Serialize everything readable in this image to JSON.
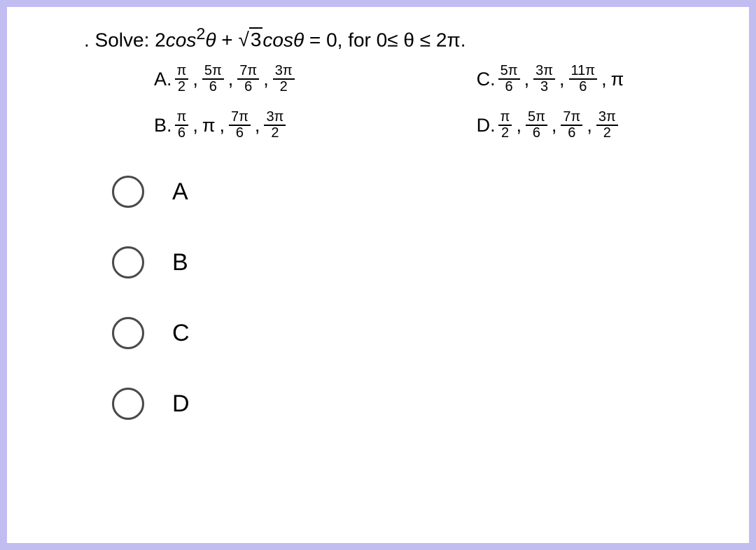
{
  "question": {
    "prefix": ". Solve: ",
    "coeff1": "2",
    "term1": "cos",
    "exp1": "2",
    "var1": "θ",
    "plus": " + ",
    "sqrt_inner": "3",
    "term2": "cosθ",
    "eq_zero": " = 0, ",
    "domain": "for 0≤ θ ≤ 2π."
  },
  "choices": {
    "A": {
      "label": "A.",
      "parts": [
        [
          "π",
          "2"
        ],
        [
          "5π",
          "6"
        ],
        [
          "7π",
          "6"
        ],
        [
          "3π",
          "2"
        ]
      ]
    },
    "B": {
      "label": "B.",
      "parts": [
        [
          "π",
          "6"
        ],
        "π",
        [
          "7π",
          "6"
        ],
        [
          "3π",
          "2"
        ]
      ]
    },
    "C": {
      "label": "C.",
      "parts": [
        [
          "5π",
          "6"
        ],
        [
          "3π",
          "3"
        ],
        [
          "11π",
          "6"
        ],
        "π"
      ]
    },
    "D": {
      "label": "D.",
      "parts": [
        [
          "π",
          "2"
        ],
        [
          "5π",
          "6"
        ],
        [
          "7π",
          "6"
        ],
        [
          "3π",
          "2"
        ]
      ]
    }
  },
  "options": {
    "A": "A",
    "B": "B",
    "C": "C",
    "D": "D"
  },
  "colors": {
    "border": "#c2bdf0",
    "text": "#000000",
    "radio": "#4a4a4a",
    "bg": "#ffffff"
  }
}
